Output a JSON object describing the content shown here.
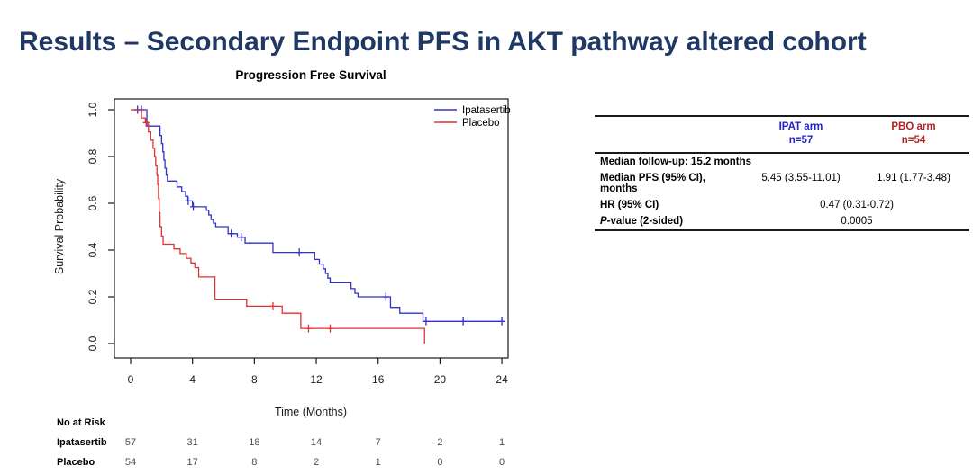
{
  "slide": {
    "title": "Results – Secondary Endpoint PFS in AKT pathway altered cohort",
    "title_color": "#1F3864",
    "background_color": "#FFFFFF"
  },
  "chart_data": {
    "type": "line",
    "variant": "kaplan-meier-step",
    "title": "Progression Free Survival",
    "xlabel": "Time (Months)",
    "ylabel": "Survival Probability",
    "xlim": [
      0,
      24
    ],
    "ylim": [
      0.0,
      1.0
    ],
    "xticks": [
      0,
      4,
      8,
      12,
      16,
      20,
      24
    ],
    "yticks": [
      1.0,
      0.8,
      0.6,
      0.4,
      0.2,
      0.0
    ],
    "grid": "off",
    "legend": {
      "position": "top-right"
    },
    "series": [
      {
        "name": "Ipatasertib",
        "color": "#3333CC",
        "points": [
          [
            0,
            1.0
          ],
          [
            1.05,
            0.93
          ],
          [
            1.9,
            0.89
          ],
          [
            2.0,
            0.855
          ],
          [
            2.08,
            0.82
          ],
          [
            2.15,
            0.785
          ],
          [
            2.22,
            0.75
          ],
          [
            2.3,
            0.72
          ],
          [
            2.38,
            0.695
          ],
          [
            3.0,
            0.67
          ],
          [
            3.3,
            0.65
          ],
          [
            3.55,
            0.63
          ],
          [
            3.7,
            0.61
          ],
          [
            4.0,
            0.585
          ],
          [
            4.9,
            0.57
          ],
          [
            5.05,
            0.55
          ],
          [
            5.2,
            0.53
          ],
          [
            5.35,
            0.515
          ],
          [
            5.5,
            0.5
          ],
          [
            6.3,
            0.47
          ],
          [
            6.9,
            0.455
          ],
          [
            7.4,
            0.43
          ],
          [
            9.2,
            0.39
          ],
          [
            11.9,
            0.36
          ],
          [
            12.2,
            0.34
          ],
          [
            12.45,
            0.32
          ],
          [
            12.6,
            0.3
          ],
          [
            12.75,
            0.28
          ],
          [
            12.9,
            0.26
          ],
          [
            14.25,
            0.235
          ],
          [
            14.5,
            0.215
          ],
          [
            14.7,
            0.2
          ],
          [
            16.8,
            0.155
          ],
          [
            17.4,
            0.13
          ],
          [
            18.9,
            0.095
          ]
        ],
        "censors": [
          [
            0.45,
            1.0
          ],
          [
            0.7,
            1.0
          ],
          [
            3.72,
            0.61
          ],
          [
            4.05,
            0.585
          ],
          [
            6.5,
            0.47
          ],
          [
            7.15,
            0.455
          ],
          [
            10.9,
            0.39
          ],
          [
            16.5,
            0.2
          ],
          [
            19.1,
            0.095
          ],
          [
            21.5,
            0.095
          ],
          [
            24.0,
            0.095
          ]
        ],
        "end_time": 24.15
      },
      {
        "name": "Placebo",
        "color": "#DD3333",
        "points": [
          [
            0,
            1.0
          ],
          [
            0.7,
            0.965
          ],
          [
            0.95,
            0.945
          ],
          [
            1.15,
            0.905
          ],
          [
            1.3,
            0.87
          ],
          [
            1.45,
            0.835
          ],
          [
            1.55,
            0.8
          ],
          [
            1.62,
            0.76
          ],
          [
            1.7,
            0.72
          ],
          [
            1.75,
            0.68
          ],
          [
            1.8,
            0.62
          ],
          [
            1.85,
            0.56
          ],
          [
            1.9,
            0.5
          ],
          [
            2.0,
            0.46
          ],
          [
            2.1,
            0.425
          ],
          [
            2.8,
            0.405
          ],
          [
            3.2,
            0.385
          ],
          [
            3.6,
            0.365
          ],
          [
            3.9,
            0.345
          ],
          [
            4.15,
            0.325
          ],
          [
            4.4,
            0.285
          ],
          [
            5.45,
            0.19
          ],
          [
            7.5,
            0.16
          ],
          [
            9.8,
            0.13
          ],
          [
            11.0,
            0.065
          ],
          [
            19.0,
            0.0
          ]
        ],
        "censors": [
          [
            1.0,
            0.945
          ],
          [
            9.2,
            0.16
          ],
          [
            11.5,
            0.065
          ],
          [
            12.9,
            0.065
          ]
        ],
        "end_time": 19.0
      }
    ],
    "risk_table": {
      "header": "No at Risk",
      "times": [
        0,
        4,
        8,
        12,
        16,
        20,
        24
      ],
      "rows": [
        {
          "name": "Ipatasertib",
          "counts": [
            57,
            31,
            18,
            14,
            7,
            2,
            1
          ]
        },
        {
          "name": "Placebo",
          "counts": [
            54,
            17,
            8,
            2,
            1,
            0,
            0
          ]
        }
      ]
    }
  },
  "stats_table": {
    "columns": [
      {
        "label": "IPAT arm",
        "sub": "n=57",
        "color": "#2222CC"
      },
      {
        "label": "PBO arm",
        "sub": "n=54",
        "color": "#B22222"
      }
    ],
    "rows": [
      {
        "label": "Median follow-up: 15.2 months",
        "values": null
      },
      {
        "label": "Median PFS (95% CI), months",
        "values": [
          "5.45 (3.55-11.01)",
          "1.91 (1.77-3.48)"
        ]
      },
      {
        "label": "HR (95% CI)",
        "span_value": "0.47 (0.31-0.72)"
      },
      {
        "label_italic_prefix": "P",
        "label": "-value (2-sided)",
        "span_value": "0.0005"
      }
    ]
  }
}
